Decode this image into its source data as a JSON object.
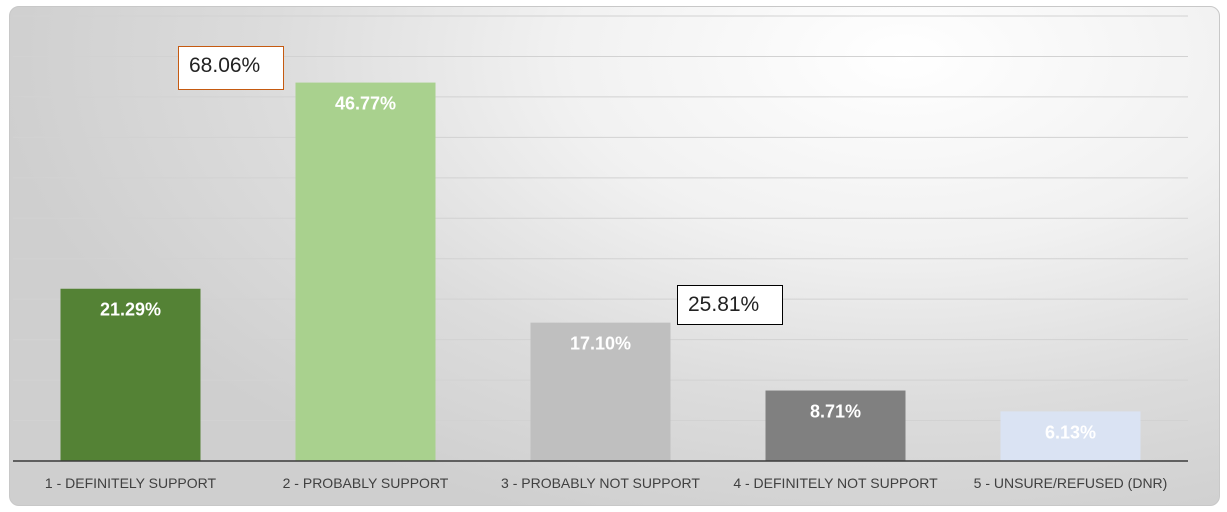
{
  "chart_data": {
    "type": "bar",
    "categories": [
      "1 - DEFINITELY SUPPORT",
      "2 - PROBABLY SUPPORT",
      "3 - PROBABLY NOT SUPPORT",
      "4 - DEFINITELY NOT SUPPORT",
      "5 - UNSURE/REFUSED (DNR)"
    ],
    "values": [
      21.29,
      46.77,
      17.1,
      8.71,
      6.13
    ],
    "data_labels": [
      "21.29%",
      "46.77%",
      "17.10%",
      "8.71%",
      "6.13%"
    ],
    "bar_colors": [
      "#548235",
      "#a9d18e",
      "#bfbfbf",
      "#808080",
      "#dae3f3"
    ],
    "label_colors": [
      "#ffffff",
      "#ffffff",
      "#ffffff",
      "#ffffff",
      "#ffffff"
    ],
    "ylim": [
      0,
      55
    ],
    "grid": true,
    "title": "",
    "xlabel": "",
    "ylabel": "",
    "annotations": [
      {
        "text": "68.06%",
        "border_color": "#c55a11"
      },
      {
        "text": "25.81%",
        "border_color": "#000000"
      }
    ]
  }
}
